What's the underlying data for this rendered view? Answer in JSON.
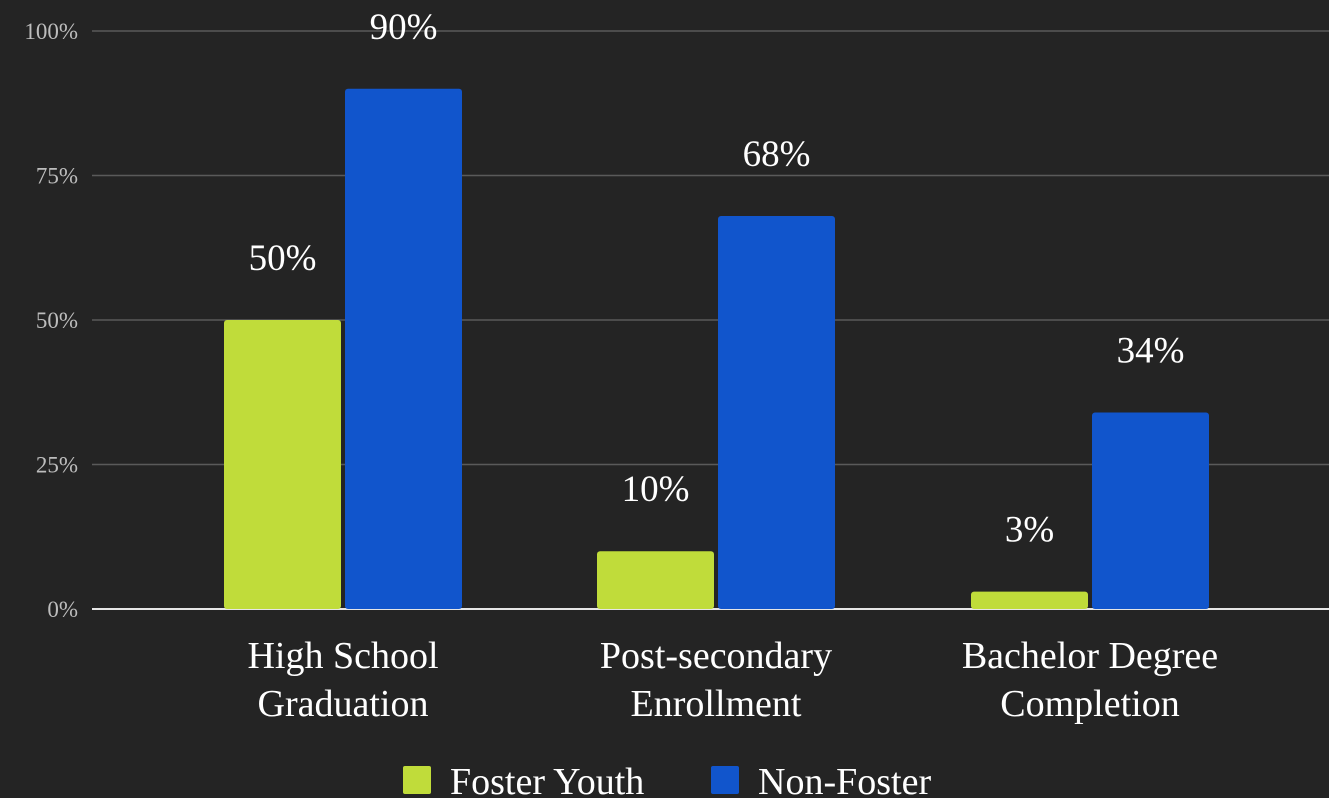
{
  "chart_data": {
    "type": "bar",
    "title": "",
    "xlabel": "",
    "ylabel": "",
    "categories": [
      [
        "High School",
        "Graduation"
      ],
      [
        "Post-secondary",
        "Enrollment"
      ],
      [
        "Bachelor Degree",
        "Completion"
      ]
    ],
    "series": [
      {
        "name": "Foster Youth",
        "color": "#c0dc3a",
        "values": [
          50,
          10,
          3
        ],
        "labels": [
          "50%",
          "10%",
          "3%"
        ]
      },
      {
        "name": "Non-Foster",
        "color": "#1155cc",
        "values": [
          90,
          68,
          34
        ],
        "labels": [
          "90%",
          "68%",
          "34%"
        ]
      }
    ],
    "ylim": [
      0,
      100
    ],
    "yticks": [
      0,
      25,
      50,
      75,
      100
    ],
    "ytick_labels": [
      "0%",
      "25%",
      "50%",
      "75%",
      "100%"
    ],
    "grid": true,
    "legend": {
      "position": "bottom-center"
    }
  }
}
